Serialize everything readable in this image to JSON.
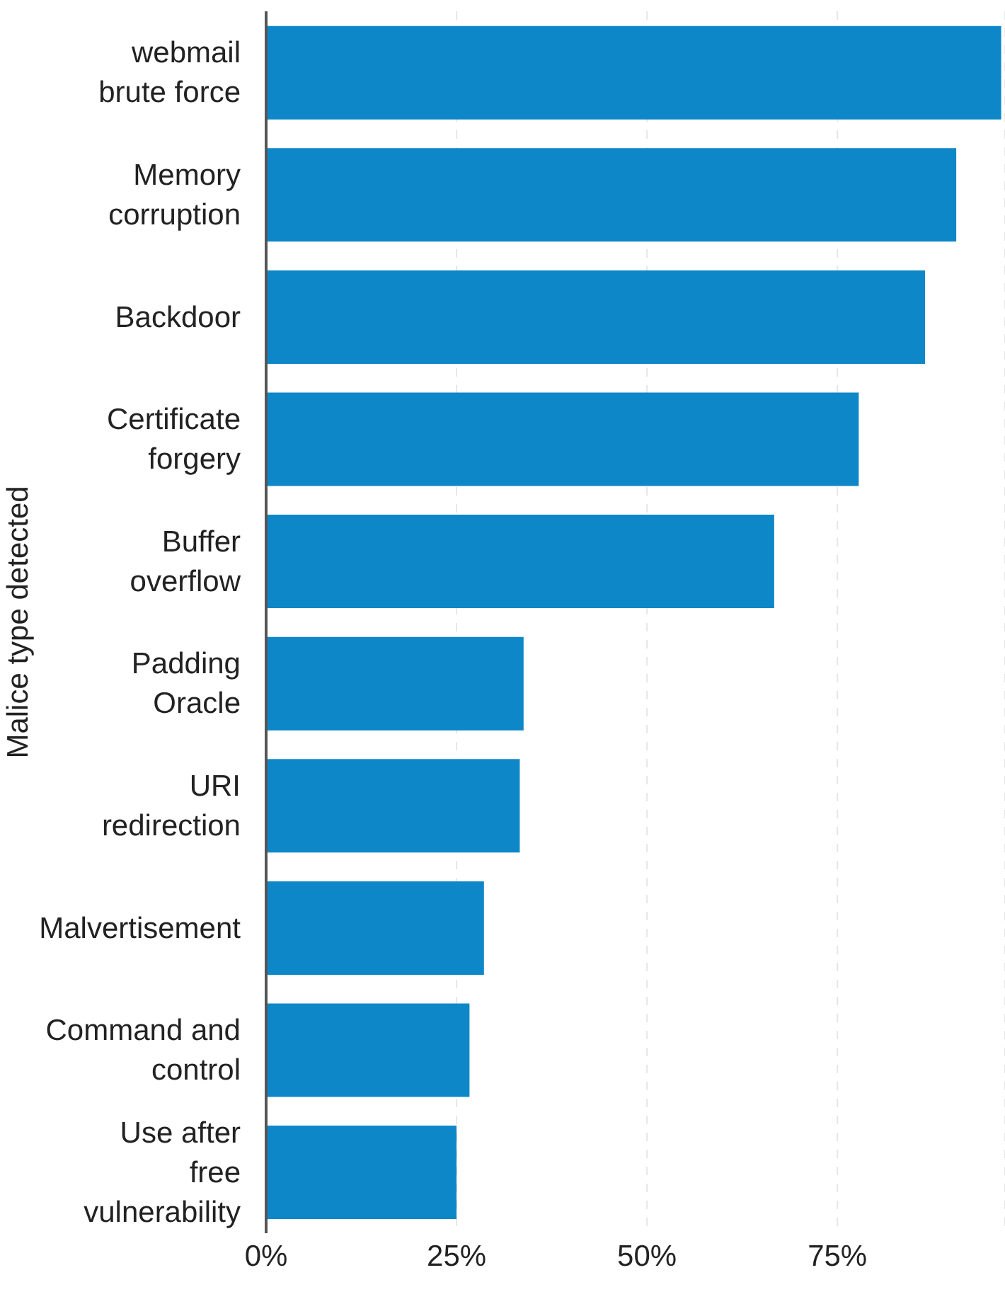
{
  "chart_data": {
    "type": "bar",
    "orientation": "horizontal",
    "ylabel": "Malice type detected",
    "categories": [
      "webmail brute force",
      "Memory corruption",
      "Backdoor",
      "Certificate forgery",
      "Buffer overflow",
      "Padding Oracle",
      "URI redirection",
      "Malvertisement",
      "Command and control",
      "Use after free vulnerability"
    ],
    "values": [
      96.5,
      90.6,
      86.5,
      77.8,
      66.7,
      33.8,
      33.3,
      28.6,
      26.7,
      25.0
    ],
    "color": "#0e87c9",
    "xlim": [
      0,
      97
    ],
    "xticks": [
      {
        "value": 0,
        "label": "0%"
      },
      {
        "value": 25,
        "label": "25%"
      },
      {
        "value": 50,
        "label": "50%"
      },
      {
        "value": 75,
        "label": "75%"
      }
    ],
    "grid": "x"
  }
}
